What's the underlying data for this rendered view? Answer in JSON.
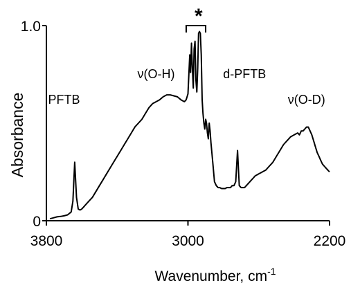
{
  "chart_data": {
    "type": "line",
    "title": "",
    "xlabel": "Wavenumber, cm",
    "xlabel_superscript": "-1",
    "ylabel": "Absorbance",
    "xlim": [
      3800,
      2200
    ],
    "x_reversed": true,
    "ylim": [
      0,
      1.0
    ],
    "x_ticks": [
      3800,
      3000,
      2200
    ],
    "x_tick_labels": [
      "3800",
      "3000",
      "2200"
    ],
    "y_ticks": [
      0,
      1.0
    ],
    "y_tick_labels": [
      "0",
      "1.0"
    ],
    "grid": false,
    "series": [
      {
        "x": [
          3780,
          3760,
          3740,
          3720,
          3700,
          3680,
          3660,
          3650,
          3640,
          3630,
          3620,
          3610,
          3600,
          3590,
          3580,
          3560,
          3540,
          3520,
          3500,
          3480,
          3460,
          3440,
          3420,
          3400,
          3380,
          3360,
          3340,
          3320,
          3300,
          3280,
          3260,
          3240,
          3220,
          3200,
          3180,
          3160,
          3140,
          3120,
          3100,
          3080,
          3060,
          3040,
          3020,
          3010,
          3000,
          2995,
          2990,
          2985,
          2980,
          2975,
          2970,
          2965,
          2960,
          2955,
          2950,
          2945,
          2940,
          2935,
          2930,
          2925,
          2920,
          2915,
          2910,
          2905,
          2900,
          2895,
          2890,
          2885,
          2880,
          2875,
          2870,
          2860,
          2850,
          2840,
          2830,
          2820,
          2810,
          2800,
          2790,
          2780,
          2770,
          2760,
          2750,
          2740,
          2730,
          2720,
          2710,
          2700,
          2690,
          2680,
          2670,
          2660,
          2650,
          2640,
          2630,
          2620,
          2610,
          2600,
          2580,
          2560,
          2540,
          2520,
          2500,
          2480,
          2460,
          2440,
          2420,
          2400,
          2380,
          2370,
          2360,
          2350,
          2340,
          2330,
          2320,
          2310,
          2300,
          2290,
          2280,
          2270,
          2260,
          2250,
          2240,
          2230,
          2220,
          2210,
          2200
        ],
        "y": [
          0.01,
          0.015,
          0.02,
          0.022,
          0.025,
          0.03,
          0.045,
          0.1,
          0.3,
          0.12,
          0.06,
          0.055,
          0.06,
          0.07,
          0.08,
          0.1,
          0.12,
          0.15,
          0.18,
          0.21,
          0.24,
          0.27,
          0.3,
          0.33,
          0.36,
          0.39,
          0.42,
          0.45,
          0.48,
          0.5,
          0.52,
          0.55,
          0.58,
          0.6,
          0.61,
          0.62,
          0.635,
          0.645,
          0.645,
          0.64,
          0.635,
          0.62,
          0.61,
          0.62,
          0.65,
          0.75,
          0.85,
          0.76,
          0.91,
          0.78,
          0.68,
          0.88,
          0.92,
          0.72,
          0.66,
          0.78,
          0.96,
          0.97,
          0.96,
          0.85,
          0.62,
          0.55,
          0.5,
          0.47,
          0.52,
          0.5,
          0.45,
          0.42,
          0.5,
          0.46,
          0.4,
          0.3,
          0.2,
          0.18,
          0.17,
          0.17,
          0.165,
          0.165,
          0.165,
          0.17,
          0.17,
          0.17,
          0.18,
          0.18,
          0.2,
          0.36,
          0.18,
          0.17,
          0.17,
          0.17,
          0.18,
          0.19,
          0.2,
          0.21,
          0.22,
          0.23,
          0.235,
          0.24,
          0.25,
          0.26,
          0.28,
          0.3,
          0.33,
          0.36,
          0.39,
          0.41,
          0.43,
          0.44,
          0.45,
          0.44,
          0.46,
          0.46,
          0.47,
          0.48,
          0.48,
          0.46,
          0.44,
          0.41,
          0.38,
          0.35,
          0.33,
          0.31,
          0.29,
          0.28,
          0.27,
          0.26,
          0.25
        ]
      }
    ],
    "annotations": [
      {
        "text": "PFTB",
        "x": 3700,
        "y": 0.6
      },
      {
        "text": "ν(O-H)",
        "x": 3180,
        "y": 0.73
      },
      {
        "text": "d-PFTB",
        "x": 2680,
        "y": 0.73
      },
      {
        "text": "ν(O-D)",
        "x": 2330,
        "y": 0.6
      },
      {
        "text": "*",
        "x": 2940,
        "y": 1.08
      }
    ],
    "bracket": {
      "x_start": 3010,
      "x_end": 2900,
      "label": "*"
    }
  }
}
